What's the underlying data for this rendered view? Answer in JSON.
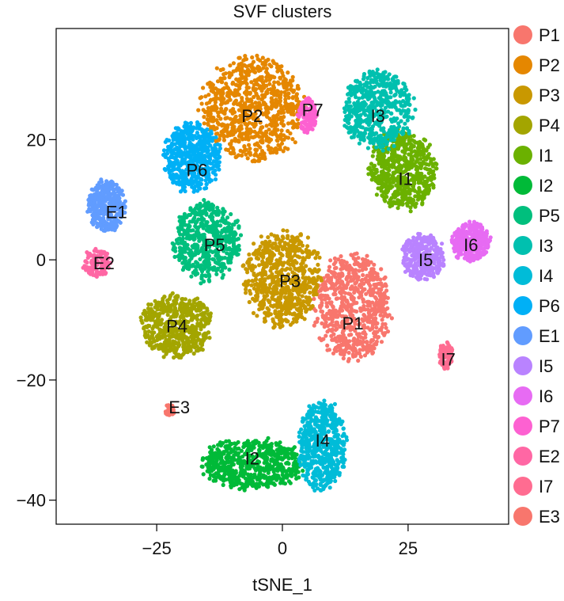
{
  "chart_data": {
    "type": "scatter",
    "title": "SVF clusters",
    "xlabel": "tSNE_1",
    "ylabel": "",
    "xlim": [
      -45,
      45
    ],
    "ylim": [
      -44,
      38.5
    ],
    "xticks": [
      -25,
      0,
      25
    ],
    "xtick_labels": [
      "−25",
      "0",
      "25"
    ],
    "yticks": [
      20,
      0,
      -20,
      -40
    ],
    "ytick_labels": [
      "20",
      "0",
      "−20",
      "−40"
    ],
    "grid": false,
    "legend_position": "right",
    "clusters": [
      {
        "name": "P1",
        "color": "#F8766D",
        "label_x": 14,
        "label_y": -10.5
      },
      {
        "name": "P2",
        "color": "#E58700",
        "label_x": -6,
        "label_y": 24
      },
      {
        "name": "P3",
        "color": "#C99800",
        "label_x": 1.5,
        "label_y": -3.5
      },
      {
        "name": "P4",
        "color": "#A3A500",
        "label_x": -21,
        "label_y": -11
      },
      {
        "name": "I1",
        "color": "#6BB100",
        "label_x": 24.5,
        "label_y": 13.5
      },
      {
        "name": "I2",
        "color": "#00BA38",
        "label_x": -6,
        "label_y": -33
      },
      {
        "name": "P5",
        "color": "#00BF7D",
        "label_x": -13.5,
        "label_y": 2.5
      },
      {
        "name": "I3",
        "color": "#00C0AF",
        "label_x": 19,
        "label_y": 24
      },
      {
        "name": "I4",
        "color": "#00BCD8",
        "label_x": 8,
        "label_y": -30
      },
      {
        "name": "P6",
        "color": "#00B0F6",
        "label_x": -17,
        "label_y": 15
      },
      {
        "name": "E1",
        "color": "#619CFF",
        "label_x": -33,
        "label_y": 8
      },
      {
        "name": "I5",
        "color": "#B983FF",
        "label_x": 28.5,
        "label_y": 0
      },
      {
        "name": "I6",
        "color": "#E76BF3",
        "label_x": 37.5,
        "label_y": 2.5
      },
      {
        "name": "P7",
        "color": "#FD61D1",
        "label_x": 6,
        "label_y": 25
      },
      {
        "name": "E2",
        "color": "#FF67A4",
        "label_x": -35.5,
        "label_y": -0.5
      },
      {
        "name": "I7",
        "color": "#FF6C91",
        "label_x": 33,
        "label_y": -16.5
      },
      {
        "name": "E3",
        "color": "#F8766D",
        "label_x": -20.5,
        "label_y": -24.5
      }
    ]
  }
}
